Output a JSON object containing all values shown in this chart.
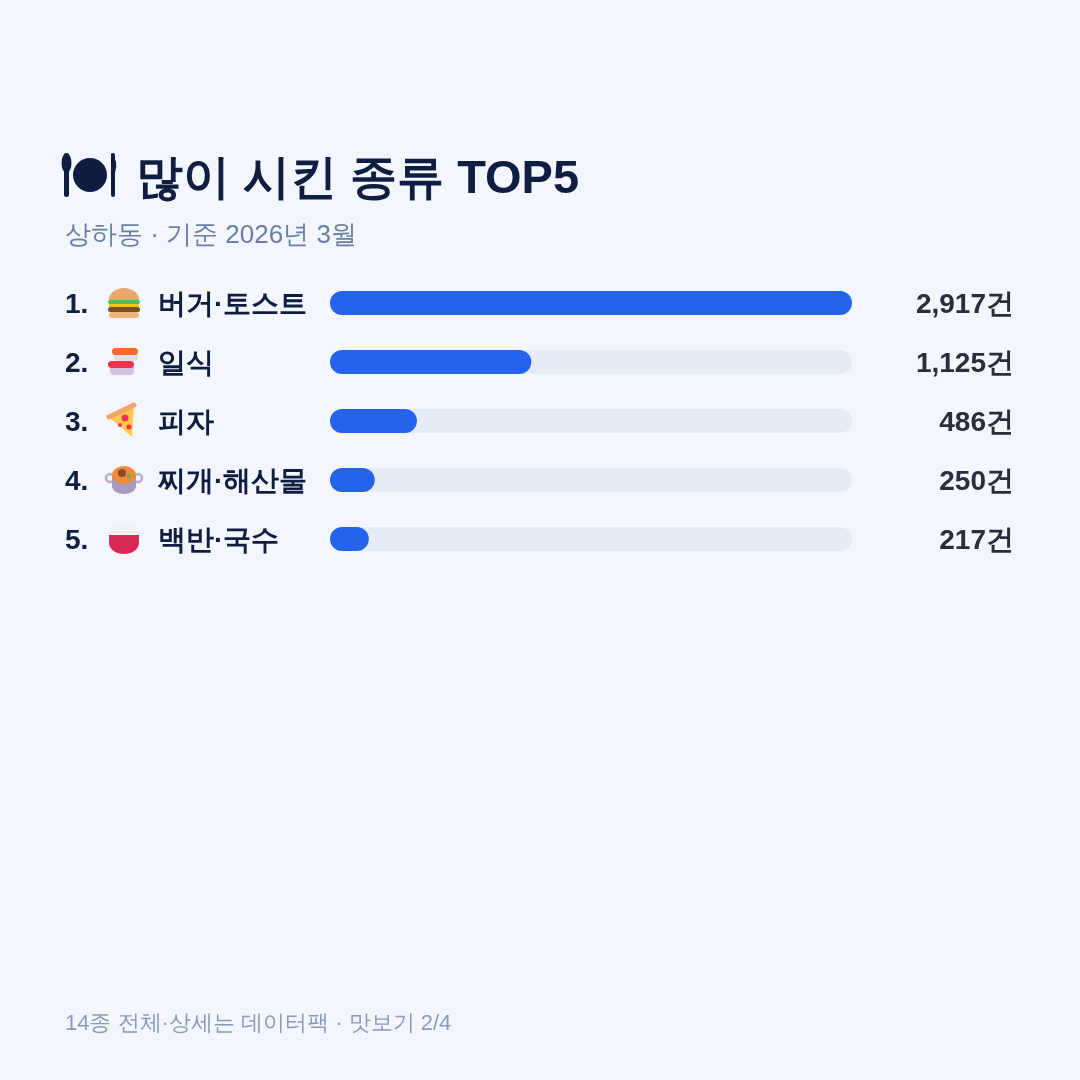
{
  "chart_data": {
    "type": "bar",
    "orientation": "horizontal",
    "title": "많이 시킨 종류 TOP5",
    "subtitle": "상하동 · 기준 2026년 3월",
    "categories": [
      "1. 버거·토스트",
      "2. 일식",
      "3. 피자",
      "4. 찌개·해산물",
      "5. 백반·국수"
    ],
    "values": [
      2917,
      1125,
      486,
      250,
      217
    ],
    "value_labels": [
      "2,917건",
      "1,125건",
      "486건",
      "250건",
      "217건"
    ],
    "color": "#2563eb",
    "annotations": [
      "14종 전체·상세는 데이터팩 · 맛보기 2/4"
    ]
  }
}
